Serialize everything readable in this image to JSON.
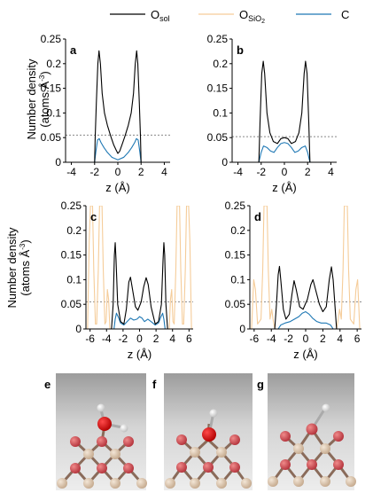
{
  "legend": {
    "items": [
      {
        "main": "O",
        "sub": "sol",
        "sub2": "",
        "color": "#000000"
      },
      {
        "main": "O",
        "sub": "SiO",
        "sub2": "2",
        "color": "#f5cc99"
      },
      {
        "main": "C",
        "sub": "",
        "sub2": "",
        "color": "#1f78b4"
      }
    ]
  },
  "ylabel": {
    "line1": "Number density",
    "line2_pre": "(atoms Å",
    "line2_sup": "-3",
    "line2_post": ")"
  },
  "colors": {
    "o_sol": "#000000",
    "o_sio2": "#f5cc99",
    "carbon": "#1f78b4",
    "reference": "#888888"
  },
  "chart_data": [
    {
      "panel": "a",
      "type": "line",
      "xlabel": "z (Å)",
      "ylabel": "Number density (atoms Å-3)",
      "xlim": [
        -4.5,
        4.5
      ],
      "ylim": [
        0,
        0.25
      ],
      "xticks": [
        -4,
        -2,
        0,
        2,
        4
      ],
      "yticks": [
        0,
        0.05,
        0.1,
        0.15,
        0.2,
        0.25
      ],
      "reference_y": 0.055,
      "series": [
        {
          "name": "Osol",
          "points": [
            [
              -2,
              0
            ],
            [
              -1.95,
              0.05
            ],
            [
              -1.85,
              0.12
            ],
            [
              -1.72,
              0.2
            ],
            [
              -1.62,
              0.226
            ],
            [
              -1.5,
              0.2
            ],
            [
              -1.35,
              0.14
            ],
            [
              -1.15,
              0.1
            ],
            [
              -0.9,
              0.075
            ],
            [
              -0.6,
              0.052
            ],
            [
              -0.35,
              0.035
            ],
            [
              -0.15,
              0.025
            ],
            [
              0,
              0.018
            ],
            [
              0.15,
              0.022
            ],
            [
              0.35,
              0.035
            ],
            [
              0.6,
              0.052
            ],
            [
              0.9,
              0.075
            ],
            [
              1.15,
              0.1
            ],
            [
              1.35,
              0.14
            ],
            [
              1.5,
              0.2
            ],
            [
              1.62,
              0.226
            ],
            [
              1.72,
              0.2
            ],
            [
              1.85,
              0.12
            ],
            [
              1.95,
              0.05
            ],
            [
              2,
              0
            ]
          ]
        },
        {
          "name": "OSiO2",
          "points": []
        },
        {
          "name": "C",
          "points": [
            [
              -2,
              0
            ],
            [
              -1.9,
              0.02
            ],
            [
              -1.75,
              0.045
            ],
            [
              -1.6,
              0.048
            ],
            [
              -1.45,
              0.04
            ],
            [
              -1.2,
              0.03
            ],
            [
              -0.9,
              0.02
            ],
            [
              -0.5,
              0.01
            ],
            [
              0,
              0.005
            ],
            [
              0.5,
              0.01
            ],
            [
              0.9,
              0.02
            ],
            [
              1.2,
              0.03
            ],
            [
              1.45,
              0.04
            ],
            [
              1.6,
              0.048
            ],
            [
              1.75,
              0.045
            ],
            [
              1.9,
              0.02
            ],
            [
              2,
              0
            ]
          ]
        }
      ]
    },
    {
      "panel": "b",
      "type": "line",
      "xlabel": "z (Å)",
      "ylabel": "Number density (atoms Å-3)",
      "xlim": [
        -4.5,
        4.5
      ],
      "ylim": [
        0,
        0.25
      ],
      "xticks": [
        -4,
        -2,
        0,
        2,
        4
      ],
      "yticks": [
        0,
        0.05,
        0.1,
        0.15,
        0.2,
        0.25
      ],
      "reference_y": 0.052,
      "series": [
        {
          "name": "Osol",
          "points": [
            [
              -2.2,
              0
            ],
            [
              -2.1,
              0.08
            ],
            [
              -1.95,
              0.18
            ],
            [
              -1.82,
              0.205
            ],
            [
              -1.7,
              0.18
            ],
            [
              -1.5,
              0.1
            ],
            [
              -1.25,
              0.06
            ],
            [
              -0.95,
              0.042
            ],
            [
              -0.6,
              0.038
            ],
            [
              -0.3,
              0.048
            ],
            [
              0,
              0.05
            ],
            [
              0.3,
              0.048
            ],
            [
              0.6,
              0.038
            ],
            [
              0.95,
              0.042
            ],
            [
              1.25,
              0.06
            ],
            [
              1.5,
              0.1
            ],
            [
              1.7,
              0.18
            ],
            [
              1.82,
              0.205
            ],
            [
              1.95,
              0.18
            ],
            [
              2.1,
              0.08
            ],
            [
              2.2,
              0
            ]
          ]
        },
        {
          "name": "OSiO2",
          "points": []
        },
        {
          "name": "C",
          "points": [
            [
              -2.2,
              0
            ],
            [
              -2,
              0.02
            ],
            [
              -1.8,
              0.033
            ],
            [
              -1.5,
              0.03
            ],
            [
              -1.2,
              0.023
            ],
            [
              -0.9,
              0.02
            ],
            [
              -0.6,
              0.03
            ],
            [
              -0.3,
              0.038
            ],
            [
              0,
              0.04
            ],
            [
              0.3,
              0.038
            ],
            [
              0.6,
              0.03
            ],
            [
              0.9,
              0.02
            ],
            [
              1.2,
              0.023
            ],
            [
              1.5,
              0.03
            ],
            [
              1.8,
              0.033
            ],
            [
              2,
              0.02
            ],
            [
              2.2,
              0
            ]
          ]
        }
      ]
    },
    {
      "panel": "c",
      "type": "line",
      "xlabel": "z (Å)",
      "ylabel": "Number density (atoms Å-3)",
      "xlim": [
        -6.5,
        6.5
      ],
      "ylim": [
        0,
        0.25
      ],
      "xticks": [
        -6,
        -4,
        -2,
        0,
        2,
        4,
        6
      ],
      "yticks": [
        0,
        0.05,
        0.1,
        0.15,
        0.2,
        0.25
      ],
      "reference_y": 0.055,
      "series": [
        {
          "name": "Osol",
          "points": [
            [
              -3.4,
              0
            ],
            [
              -3.2,
              0.05
            ],
            [
              -3.05,
              0.15
            ],
            [
              -2.95,
              0.175
            ],
            [
              -2.85,
              0.14
            ],
            [
              -2.65,
              0.05
            ],
            [
              -2.3,
              0.015
            ],
            [
              -1.9,
              0.01
            ],
            [
              -1.6,
              0.04
            ],
            [
              -1.3,
              0.095
            ],
            [
              -1.1,
              0.105
            ],
            [
              -0.85,
              0.08
            ],
            [
              -0.5,
              0.045
            ],
            [
              -0.2,
              0.038
            ],
            [
              0.2,
              0.055
            ],
            [
              0.5,
              0.085
            ],
            [
              0.8,
              0.104
            ],
            [
              1.05,
              0.09
            ],
            [
              1.4,
              0.045
            ],
            [
              1.9,
              0.01
            ],
            [
              2.3,
              0.015
            ],
            [
              2.65,
              0.05
            ],
            [
              2.85,
              0.14
            ],
            [
              2.95,
              0.175
            ],
            [
              3.05,
              0.15
            ],
            [
              3.2,
              0.05
            ],
            [
              3.4,
              0
            ]
          ]
        },
        {
          "name": "OSiO2",
          "points": [
            [
              -6.3,
              0
            ],
            [
              -6.1,
              0.18
            ],
            [
              -5.95,
              0.25
            ],
            [
              -5.7,
              0.25
            ],
            [
              -5.55,
              0.12
            ],
            [
              -5.35,
              0.01
            ],
            [
              -5.2,
              0.01
            ],
            [
              -5,
              0.12
            ],
            [
              -4.85,
              0.25
            ],
            [
              -4.55,
              0.25
            ],
            [
              -4.4,
              0.12
            ],
            [
              -4.2,
              0.01
            ],
            [
              -4.05,
              0.015
            ],
            [
              -3.9,
              0.08
            ],
            [
              -3.75,
              0.06
            ],
            [
              -3.6,
              0
            ],
            [
              3.6,
              0
            ],
            [
              3.75,
              0.06
            ],
            [
              3.9,
              0.08
            ],
            [
              4.05,
              0.015
            ],
            [
              4.2,
              0.01
            ],
            [
              4.4,
              0.12
            ],
            [
              4.55,
              0.25
            ],
            [
              4.85,
              0.25
            ],
            [
              5,
              0.12
            ],
            [
              5.2,
              0.01
            ],
            [
              5.35,
              0.01
            ],
            [
              5.55,
              0.12
            ],
            [
              5.7,
              0.25
            ],
            [
              5.95,
              0.25
            ],
            [
              6.1,
              0.18
            ],
            [
              6.3,
              0
            ]
          ]
        },
        {
          "name": "C",
          "points": [
            [
              -3.1,
              0
            ],
            [
              -2.95,
              0.02
            ],
            [
              -2.8,
              0.032
            ],
            [
              -2.6,
              0.025
            ],
            [
              -2.3,
              0.012
            ],
            [
              -1.9,
              0.008
            ],
            [
              -1.5,
              0.015
            ],
            [
              -1.1,
              0.022
            ],
            [
              -0.7,
              0.018
            ],
            [
              -0.3,
              0.02
            ],
            [
              0,
              0.025
            ],
            [
              0.3,
              0.022
            ],
            [
              0.6,
              0.015
            ],
            [
              1,
              0.02
            ],
            [
              1.4,
              0.015
            ],
            [
              1.9,
              0.008
            ],
            [
              2.3,
              0.012
            ],
            [
              2.6,
              0.025
            ],
            [
              2.8,
              0.032
            ],
            [
              2.95,
              0.02
            ],
            [
              3.1,
              0
            ]
          ]
        }
      ]
    },
    {
      "panel": "d",
      "type": "line",
      "xlabel": "z (Å)",
      "ylabel": "Number density (atoms Å-3)",
      "xlim": [
        -6.5,
        6.5
      ],
      "ylim": [
        0,
        0.25
      ],
      "xticks": [
        -6,
        -4,
        -2,
        0,
        2,
        4,
        6
      ],
      "yticks": [
        0,
        0.05,
        0.1,
        0.15,
        0.2,
        0.25
      ],
      "reference_y": 0.055,
      "series": [
        {
          "name": "Osol",
          "points": [
            [
              -3.6,
              0
            ],
            [
              -3.4,
              0.05
            ],
            [
              -3.2,
              0.11
            ],
            [
              -3.05,
              0.127
            ],
            [
              -2.9,
              0.1
            ],
            [
              -2.6,
              0.04
            ],
            [
              -2.3,
              0.02
            ],
            [
              -1.9,
              0.03
            ],
            [
              -1.6,
              0.07
            ],
            [
              -1.35,
              0.098
            ],
            [
              -1.1,
              0.08
            ],
            [
              -0.7,
              0.045
            ],
            [
              -0.3,
              0.04
            ],
            [
              0.2,
              0.06
            ],
            [
              0.6,
              0.09
            ],
            [
              0.85,
              0.1
            ],
            [
              1.15,
              0.08
            ],
            [
              1.6,
              0.05
            ],
            [
              2,
              0.035
            ],
            [
              2.4,
              0.045
            ],
            [
              2.75,
              0.1
            ],
            [
              3,
              0.126
            ],
            [
              3.2,
              0.1
            ],
            [
              3.4,
              0.05
            ],
            [
              3.6,
              0
            ]
          ]
        },
        {
          "name": "OSiO2",
          "points": [
            [
              -6.3,
              0
            ],
            [
              -6.05,
              0.1
            ],
            [
              -5.85,
              0.08
            ],
            [
              -5.6,
              0.01
            ],
            [
              -5.2,
              0.02
            ],
            [
              -5,
              0.12
            ],
            [
              -4.85,
              0.25
            ],
            [
              -4.5,
              0.25
            ],
            [
              -4.35,
              0.12
            ],
            [
              -4.15,
              0.02
            ],
            [
              -3.95,
              0.04
            ],
            [
              -3.8,
              0.02
            ],
            [
              -3.6,
              0
            ],
            [
              3.6,
              0
            ],
            [
              3.8,
              0.02
            ],
            [
              3.95,
              0.04
            ],
            [
              4.15,
              0.02
            ],
            [
              4.35,
              0.12
            ],
            [
              4.5,
              0.25
            ],
            [
              4.85,
              0.25
            ],
            [
              5,
              0.12
            ],
            [
              5.2,
              0.02
            ],
            [
              5.6,
              0.01
            ],
            [
              5.85,
              0.08
            ],
            [
              6.05,
              0.1
            ],
            [
              6.3,
              0
            ]
          ]
        },
        {
          "name": "C",
          "points": [
            [
              -3.2,
              0
            ],
            [
              -2.9,
              0.008
            ],
            [
              -2.4,
              0.012
            ],
            [
              -1.8,
              0.015
            ],
            [
              -1.3,
              0.02
            ],
            [
              -0.8,
              0.025
            ],
            [
              -0.4,
              0.032
            ],
            [
              0,
              0.035
            ],
            [
              0.4,
              0.03
            ],
            [
              0.8,
              0.022
            ],
            [
              1.3,
              0.015
            ],
            [
              1.8,
              0.012
            ],
            [
              2.4,
              0.012
            ],
            [
              2.9,
              0.008
            ],
            [
              3.2,
              0
            ]
          ]
        }
      ]
    }
  ],
  "images": [
    {
      "label": "e",
      "molecules": [
        "OH",
        "H"
      ]
    },
    {
      "label": "f",
      "molecules": [
        "OH"
      ]
    },
    {
      "label": "g",
      "molecules": [
        "OH"
      ]
    }
  ]
}
